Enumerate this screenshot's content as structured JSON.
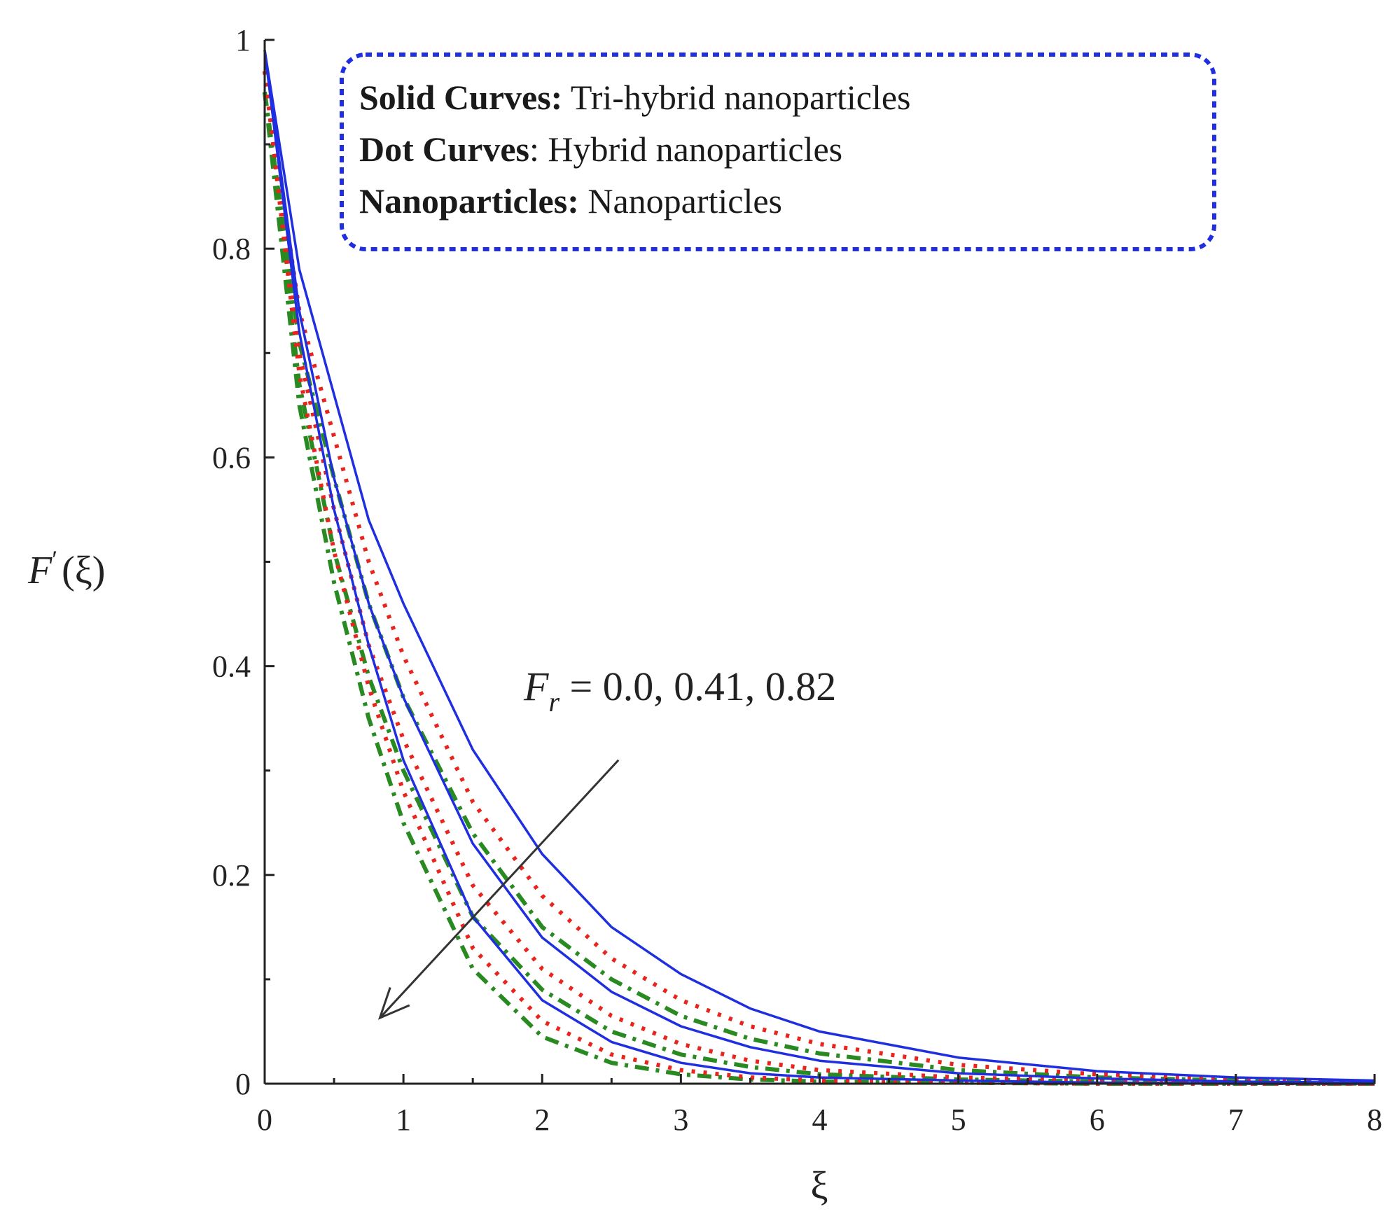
{
  "chart_data": {
    "type": "line",
    "title": "",
    "xlabel": "ξ",
    "ylabel": {
      "main": "F",
      "prime": "′",
      "arg": "(ξ)"
    },
    "xlim": [
      0,
      8
    ],
    "ylim": [
      0,
      1
    ],
    "x_ticks": [
      {
        "value": 0,
        "label": "0"
      },
      {
        "value": 1,
        "label": "1"
      },
      {
        "value": 2,
        "label": "2"
      },
      {
        "value": 3,
        "label": "3"
      },
      {
        "value": 4,
        "label": "4"
      },
      {
        "value": 5,
        "label": "5"
      },
      {
        "value": 6,
        "label": "6"
      },
      {
        "value": 7,
        "label": "7"
      },
      {
        "value": 8,
        "label": "8"
      }
    ],
    "y_ticks": [
      {
        "value": 0,
        "label": "0"
      },
      {
        "value": 0.2,
        "label": "0.2"
      },
      {
        "value": 0.4,
        "label": "0.4"
      },
      {
        "value": 0.6,
        "label": "0.6"
      },
      {
        "value": 0.8,
        "label": "0.8"
      },
      {
        "value": 1,
        "label": "1"
      }
    ],
    "grid": false,
    "legend": {
      "placement": "top-right",
      "border_color": "#1f2fe0",
      "entries": [
        {
          "bold": "Solid Curves:",
          "text": " Tri-hybrid nanoparticles"
        },
        {
          "bold": "Dot Curves",
          "text": ": Hybrid nanoparticles"
        },
        {
          "bold": "Nanoparticles:",
          "text": " Nanoparticles"
        }
      ]
    },
    "annotation": {
      "symbol": "F",
      "subscript": "r",
      "text": " = 0.0, 0.41, 0.82",
      "arrow": {
        "from": [
          2.55,
          0.31
        ],
        "to": [
          0.83,
          0.063
        ]
      }
    },
    "series": [
      {
        "group": "tri-hybrid",
        "style": "solid",
        "color": "#1f2fe0",
        "Fr": 0.0,
        "x": [
          0,
          0.25,
          0.5,
          0.75,
          1,
          1.5,
          2,
          2.5,
          3,
          3.5,
          4,
          5,
          6,
          7,
          8
        ],
        "y": [
          0.99,
          0.78,
          0.66,
          0.54,
          0.46,
          0.32,
          0.22,
          0.15,
          0.105,
          0.072,
          0.05,
          0.025,
          0.012,
          0.006,
          0.003
        ]
      },
      {
        "group": "tri-hybrid",
        "style": "solid",
        "color": "#1f2fe0",
        "Fr": 0.41,
        "x": [
          0,
          0.25,
          0.5,
          0.75,
          1,
          1.5,
          2,
          2.5,
          3,
          3.5,
          4,
          5,
          6,
          7,
          8
        ],
        "y": [
          0.99,
          0.74,
          0.58,
          0.46,
          0.37,
          0.23,
          0.14,
          0.088,
          0.055,
          0.035,
          0.022,
          0.01,
          0.005,
          0.002,
          0.001
        ]
      },
      {
        "group": "tri-hybrid",
        "style": "solid",
        "color": "#1f2fe0",
        "Fr": 0.82,
        "x": [
          0,
          0.25,
          0.5,
          0.75,
          1,
          1.5,
          2,
          2.5,
          3,
          3.5,
          4,
          5,
          6,
          7,
          8
        ],
        "y": [
          0.99,
          0.72,
          0.55,
          0.42,
          0.31,
          0.16,
          0.08,
          0.04,
          0.02,
          0.01,
          0.006,
          0.003,
          0.001,
          0.0,
          0.0
        ]
      },
      {
        "group": "hybrid",
        "style": "dotted",
        "color": "#e8241c",
        "Fr": 0.0,
        "x": [
          0,
          0.25,
          0.5,
          0.75,
          1,
          1.5,
          2,
          2.5,
          3,
          3.5,
          4,
          5,
          6,
          7,
          8
        ],
        "y": [
          0.97,
          0.74,
          0.62,
          0.5,
          0.41,
          0.27,
          0.18,
          0.12,
          0.08,
          0.055,
          0.038,
          0.018,
          0.009,
          0.004,
          0.002
        ]
      },
      {
        "group": "hybrid",
        "style": "dotted",
        "color": "#e8241c",
        "Fr": 0.41,
        "x": [
          0,
          0.25,
          0.5,
          0.75,
          1,
          1.5,
          2,
          2.5,
          3,
          3.5,
          4,
          5,
          6,
          7,
          8
        ],
        "y": [
          0.97,
          0.7,
          0.55,
          0.42,
          0.33,
          0.19,
          0.11,
          0.065,
          0.038,
          0.022,
          0.013,
          0.006,
          0.003,
          0.001,
          0.0
        ]
      },
      {
        "group": "hybrid",
        "style": "dotted",
        "color": "#e8241c",
        "Fr": 0.82,
        "x": [
          0,
          0.25,
          0.5,
          0.75,
          1,
          1.5,
          2,
          2.5,
          3,
          3.5,
          4,
          5,
          6,
          7,
          8
        ],
        "y": [
          0.97,
          0.68,
          0.51,
          0.38,
          0.28,
          0.13,
          0.06,
          0.028,
          0.013,
          0.006,
          0.003,
          0.001,
          0.0,
          0.0,
          0.0
        ]
      },
      {
        "group": "nanoparticles",
        "style": "dashdot",
        "color": "#2a8a22",
        "Fr": 0.0,
        "x": [
          0,
          0.25,
          0.5,
          0.75,
          1,
          1.5,
          2,
          2.5,
          3,
          3.5,
          4,
          5,
          6,
          7,
          8
        ],
        "y": [
          0.95,
          0.71,
          0.58,
          0.46,
          0.37,
          0.24,
          0.15,
          0.1,
          0.065,
          0.043,
          0.029,
          0.013,
          0.006,
          0.003,
          0.001
        ]
      },
      {
        "group": "nanoparticles",
        "style": "dashdot",
        "color": "#2a8a22",
        "Fr": 0.41,
        "x": [
          0,
          0.25,
          0.5,
          0.75,
          1,
          1.5,
          2,
          2.5,
          3,
          3.5,
          4,
          5,
          6,
          7,
          8
        ],
        "y": [
          0.95,
          0.67,
          0.51,
          0.39,
          0.3,
          0.16,
          0.09,
          0.05,
          0.028,
          0.016,
          0.009,
          0.004,
          0.002,
          0.001,
          0.0
        ]
      },
      {
        "group": "nanoparticles",
        "style": "dashdot",
        "color": "#2a8a22",
        "Fr": 0.82,
        "x": [
          0,
          0.25,
          0.5,
          0.75,
          1,
          1.5,
          2,
          2.5,
          3,
          3.5,
          4,
          5,
          6,
          7,
          8
        ],
        "y": [
          0.95,
          0.65,
          0.48,
          0.35,
          0.25,
          0.11,
          0.045,
          0.02,
          0.009,
          0.004,
          0.002,
          0.001,
          0.0,
          0.0,
          0.0
        ]
      }
    ]
  }
}
